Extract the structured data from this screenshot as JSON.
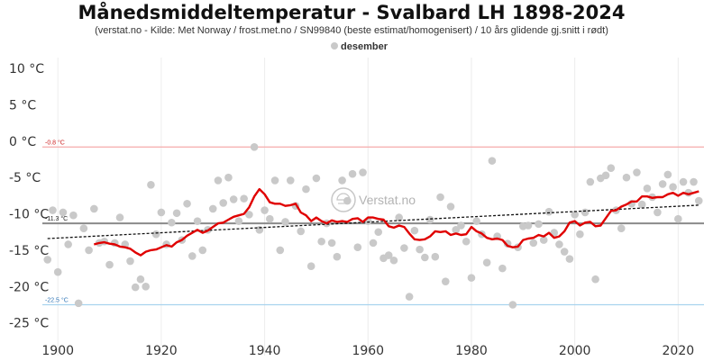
{
  "chart_data": {
    "type": "scatter",
    "title": "Månedsmiddeltemperatur - Svalbard LH 1898-2024",
    "subtitle": "(verstat.no - Kilde: Met Norway / frost.met.no / SN99840 (beste estimat/homogenisert) / 10 års glidende gj.snitt i rødt)",
    "legend": [
      "desember"
    ],
    "legend_position": "top-center",
    "xlabel": "",
    "ylabel": "",
    "xlim": [
      1897,
      2025
    ],
    "ylim": [
      -29.5,
      11.5
    ],
    "x_ticks": [
      1900,
      1920,
      1940,
      1960,
      1980,
      2000,
      2020
    ],
    "x_tick_labels": [
      "1900",
      "1920",
      "1940",
      "1960",
      "1980",
      "2000",
      "2020"
    ],
    "y_ticks": [
      10,
      5,
      0,
      -5,
      -10,
      -15,
      -20,
      -25
    ],
    "y_tick_labels": [
      "10 °C",
      "5 °C",
      "0 °C",
      "-5 °C",
      "-10 °C",
      "-15 °C",
      "-20 °C",
      "-25 °C"
    ],
    "grid": "vertical",
    "colors": {
      "points": "#c9c9c9",
      "moving_average": "#e00000",
      "trend": "#111111",
      "mean_line": "#8a8a8a",
      "max_line": "#f6b2b2",
      "min_line": "#a8d3ee",
      "max_label": "#cc2222",
      "min_label": "#3378b8"
    },
    "reference_lines": [
      {
        "label": "-0.8 °C",
        "value": -0.8,
        "kind": "max"
      },
      {
        "label": "-11.3 °C",
        "value": -11.3,
        "kind": "mean"
      },
      {
        "label": "-22.5 °C",
        "value": -22.5,
        "kind": "min"
      }
    ],
    "trend": {
      "start": [
        1898,
        -13.4
      ],
      "end": [
        2024,
        -8.8
      ]
    },
    "series": [
      {
        "name": "desember",
        "x": [
          1898,
          1899,
          1900,
          1901,
          1902,
          1903,
          1904,
          1905,
          1906,
          1907,
          1908,
          1909,
          1910,
          1911,
          1912,
          1913,
          1914,
          1915,
          1916,
          1917,
          1918,
          1919,
          1920,
          1921,
          1922,
          1923,
          1924,
          1925,
          1926,
          1927,
          1928,
          1929,
          1930,
          1931,
          1932,
          1933,
          1934,
          1935,
          1936,
          1937,
          1938,
          1939,
          1940,
          1941,
          1942,
          1943,
          1944,
          1945,
          1946,
          1947,
          1948,
          1949,
          1950,
          1951,
          1952,
          1953,
          1954,
          1955,
          1956,
          1957,
          1958,
          1959,
          1960,
          1961,
          1962,
          1963,
          1964,
          1965,
          1966,
          1967,
          1968,
          1969,
          1970,
          1971,
          1972,
          1973,
          1974,
          1975,
          1976,
          1977,
          1978,
          1979,
          1980,
          1981,
          1982,
          1983,
          1984,
          1985,
          1986,
          1987,
          1988,
          1989,
          1990,
          1991,
          1992,
          1993,
          1994,
          1995,
          1996,
          1997,
          1998,
          1999,
          2000,
          2001,
          2002,
          2003,
          2004,
          2005,
          2006,
          2007,
          2008,
          2009,
          2010,
          2011,
          2012,
          2013,
          2014,
          2015,
          2016,
          2017,
          2018,
          2019,
          2020,
          2021,
          2022,
          2023,
          2024
        ],
        "values": [
          -16.3,
          -9.5,
          -18,
          -9.8,
          -14.2,
          -10.2,
          -22.3,
          -12,
          -15,
          -9.3,
          -14,
          -13.8,
          -17,
          -14,
          -10.5,
          -14.2,
          -16.5,
          -20.1,
          -19,
          -20,
          -6,
          -12.8,
          -9.8,
          -14.2,
          -11.2,
          -9.9,
          -13.6,
          -8.6,
          -15.8,
          -11,
          -15,
          -12.2,
          -9.3,
          -5.4,
          -8.5,
          -5,
          -8,
          -11,
          -7.9,
          -10.1,
          -0.8,
          -12.2,
          -9.5,
          -10.7,
          -5.4,
          -15,
          -11.1,
          -5.4,
          -8.9,
          -12.4,
          -6.6,
          -17.2,
          -5.1,
          -13.8,
          -11.3,
          -14,
          -15.9,
          -5.4,
          -8.2,
          -4.5,
          -14.6,
          -4.3,
          -11,
          -14,
          -12.5,
          -16.1,
          -15.7,
          -16.4,
          -10.5,
          -14.7,
          -21.4,
          -12.3,
          -14.9,
          -16,
          -10.8,
          -15.9,
          -7.7,
          -19.3,
          -9,
          -12.2,
          -11.6,
          -13.8,
          -18.8,
          -11,
          -12.8,
          -16.7,
          -2.7,
          -13.1,
          -17.5,
          -14.1,
          -22.5,
          -14.6,
          -11.7,
          -11.6,
          -14,
          -11.4,
          -13.6,
          -9.7,
          -12.6,
          -14.2,
          -15.2,
          -16.2,
          -10.1,
          -12.8,
          -9.8,
          -5.6,
          -19,
          -5.1,
          -4.7,
          -3.7,
          -9.5,
          -12,
          -5,
          -8.6,
          -4.3,
          -8.7,
          -6.5,
          -7.7,
          -9.8,
          -5.9,
          -4.6,
          -6.3,
          -10.7,
          -5.6,
          -7.1,
          -5.6,
          -8.2
        ]
      },
      {
        "name": "10 års glidende gj.snitt",
        "x": [
          1907,
          1908,
          1909,
          1910,
          1911,
          1912,
          1913,
          1914,
          1915,
          1916,
          1917,
          1918,
          1919,
          1920,
          1921,
          1922,
          1923,
          1924,
          1925,
          1926,
          1927,
          1928,
          1929,
          1930,
          1931,
          1932,
          1933,
          1934,
          1935,
          1936,
          1937,
          1938,
          1939,
          1940,
          1941,
          1942,
          1943,
          1944,
          1945,
          1946,
          1947,
          1948,
          1949,
          1950,
          1951,
          1952,
          1953,
          1954,
          1955,
          1956,
          1957,
          1958,
          1959,
          1960,
          1961,
          1962,
          1963,
          1964,
          1965,
          1966,
          1967,
          1968,
          1969,
          1970,
          1971,
          1972,
          1973,
          1974,
          1975,
          1976,
          1977,
          1978,
          1979,
          1980,
          1981,
          1982,
          1983,
          1984,
          1985,
          1986,
          1987,
          1988,
          1989,
          1990,
          1991,
          1992,
          1993,
          1994,
          1995,
          1996,
          1997,
          1998,
          1999,
          2000,
          2001,
          2002,
          2003,
          2004,
          2005,
          2006,
          2007,
          2008,
          2009,
          2010,
          2011,
          2012,
          2013,
          2014,
          2015,
          2016,
          2017,
          2018,
          2019,
          2020,
          2021,
          2022,
          2023,
          2024
        ],
        "values": [
          -14.2,
          -14.0,
          -13.9,
          -14.1,
          -14.2,
          -14.5,
          -14.6,
          -14.8,
          -15.3,
          -15.7,
          -15.2,
          -15.0,
          -14.9,
          -14.6,
          -14.3,
          -14.5,
          -13.9,
          -13.6,
          -13.0,
          -12.6,
          -12.2,
          -12.6,
          -12.3,
          -11.8,
          -11.3,
          -11.2,
          -10.8,
          -10.4,
          -10.2,
          -10.0,
          -9.1,
          -7.6,
          -6.6,
          -7.3,
          -8.4,
          -8.6,
          -8.6,
          -8.9,
          -8.8,
          -8.6,
          -9.8,
          -10.2,
          -11.0,
          -10.5,
          -11.0,
          -11.3,
          -10.9,
          -11.1,
          -11.0,
          -11.1,
          -10.7,
          -10.6,
          -11.1,
          -10.5,
          -10.5,
          -10.7,
          -10.8,
          -11.7,
          -11.9,
          -11.6,
          -11.8,
          -12.7,
          -13.5,
          -13.6,
          -13.5,
          -13.1,
          -12.4,
          -12.5,
          -12.4,
          -12.9,
          -12.7,
          -12.9,
          -12.8,
          -11.8,
          -12.4,
          -12.7,
          -13.3,
          -13.5,
          -13.4,
          -13.6,
          -14.4,
          -14.6,
          -14.5,
          -13.6,
          -13.4,
          -13.3,
          -12.9,
          -13.1,
          -12.6,
          -13.3,
          -13.1,
          -12.4,
          -11.2,
          -11.0,
          -11.6,
          -11.2,
          -11.1,
          -11.7,
          -11.6,
          -10.6,
          -9.6,
          -9.5,
          -9.0,
          -8.7,
          -8.3,
          -8.3,
          -7.6,
          -7.6,
          -7.8,
          -7.7,
          -7.7,
          -7.3,
          -7.1,
          -7.5,
          -7.1,
          -7.3,
          -7.1,
          -6.9
        ]
      }
    ]
  },
  "watermark": {
    "text": "Verstat.no",
    "icon": "weather-station-logo-icon"
  }
}
